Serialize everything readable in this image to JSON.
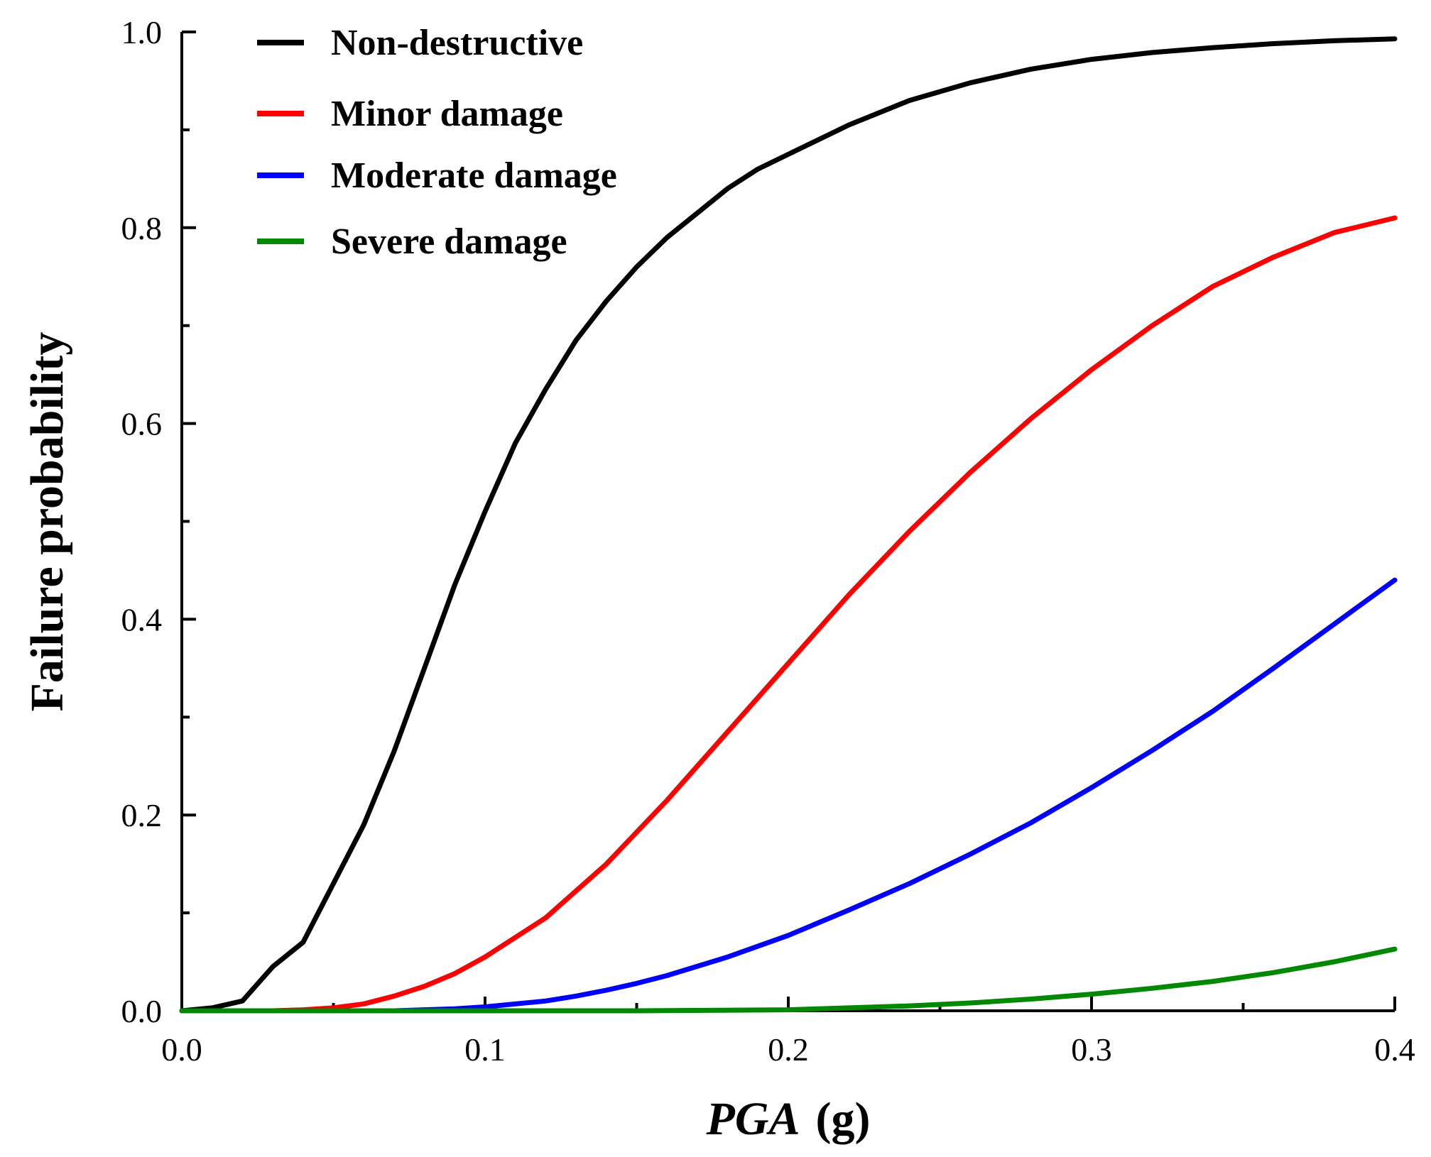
{
  "chart_data": {
    "type": "line",
    "title": "",
    "xlabel": "PGA",
    "xlabel_unit": "(g)",
    "ylabel": "Failure probability",
    "xlim": [
      0,
      0.4
    ],
    "ylim": [
      0,
      1.0
    ],
    "x_ticks": [
      "0.0",
      "0.1",
      "0.2",
      "0.3",
      "0.4"
    ],
    "y_ticks": [
      "0.0",
      "0.2",
      "0.4",
      "0.6",
      "0.8",
      "1.0"
    ],
    "grid": false,
    "legend_position": "top-left",
    "series": [
      {
        "name": "Non-destructive",
        "color": "#000000",
        "x": [
          0,
          0.01,
          0.02,
          0.03,
          0.04,
          0.05,
          0.06,
          0.07,
          0.08,
          0.09,
          0.1,
          0.11,
          0.12,
          0.13,
          0.14,
          0.15,
          0.16,
          0.17,
          0.18,
          0.19,
          0.2,
          0.22,
          0.24,
          0.26,
          0.28,
          0.3,
          0.32,
          0.34,
          0.36,
          0.38,
          0.4
        ],
        "y": [
          0,
          0.003,
          0.01,
          0.045,
          0.07,
          0.13,
          0.19,
          0.265,
          0.35,
          0.435,
          0.51,
          0.58,
          0.635,
          0.685,
          0.725,
          0.76,
          0.79,
          0.815,
          0.84,
          0.86,
          0.875,
          0.905,
          0.93,
          0.948,
          0.962,
          0.972,
          0.979,
          0.984,
          0.988,
          0.991,
          0.993
        ]
      },
      {
        "name": "Minor damage",
        "color": "#ff0000",
        "x": [
          0.03,
          0.04,
          0.05,
          0.06,
          0.07,
          0.08,
          0.09,
          0.1,
          0.12,
          0.14,
          0.16,
          0.18,
          0.2,
          0.22,
          0.24,
          0.26,
          0.28,
          0.3,
          0.32,
          0.34,
          0.36,
          0.38,
          0.4
        ],
        "y": [
          0,
          0.001,
          0.003,
          0.007,
          0.015,
          0.025,
          0.038,
          0.055,
          0.095,
          0.15,
          0.215,
          0.285,
          0.355,
          0.425,
          0.49,
          0.55,
          0.605,
          0.655,
          0.7,
          0.74,
          0.77,
          0.795,
          0.81
        ]
      },
      {
        "name": "Moderate damage",
        "color": "#0000ff",
        "x": [
          0.07,
          0.08,
          0.09,
          0.1,
          0.11,
          0.12,
          0.13,
          0.14,
          0.15,
          0.16,
          0.18,
          0.2,
          0.22,
          0.24,
          0.26,
          0.28,
          0.3,
          0.32,
          0.34,
          0.36,
          0.38,
          0.4
        ],
        "y": [
          0,
          0.001,
          0.002,
          0.004,
          0.007,
          0.01,
          0.015,
          0.021,
          0.028,
          0.036,
          0.055,
          0.077,
          0.103,
          0.13,
          0.16,
          0.192,
          0.228,
          0.266,
          0.306,
          0.35,
          0.395,
          0.44
        ]
      },
      {
        "name": "Severe damage",
        "color": "#008800",
        "x": [
          0.0,
          0.05,
          0.1,
          0.15,
          0.2,
          0.22,
          0.24,
          0.26,
          0.28,
          0.3,
          0.32,
          0.34,
          0.36,
          0.38,
          0.4
        ],
        "y": [
          0,
          0,
          0,
          0,
          0.001,
          0.003,
          0.005,
          0.008,
          0.012,
          0.017,
          0.023,
          0.03,
          0.039,
          0.05,
          0.063
        ]
      }
    ]
  }
}
